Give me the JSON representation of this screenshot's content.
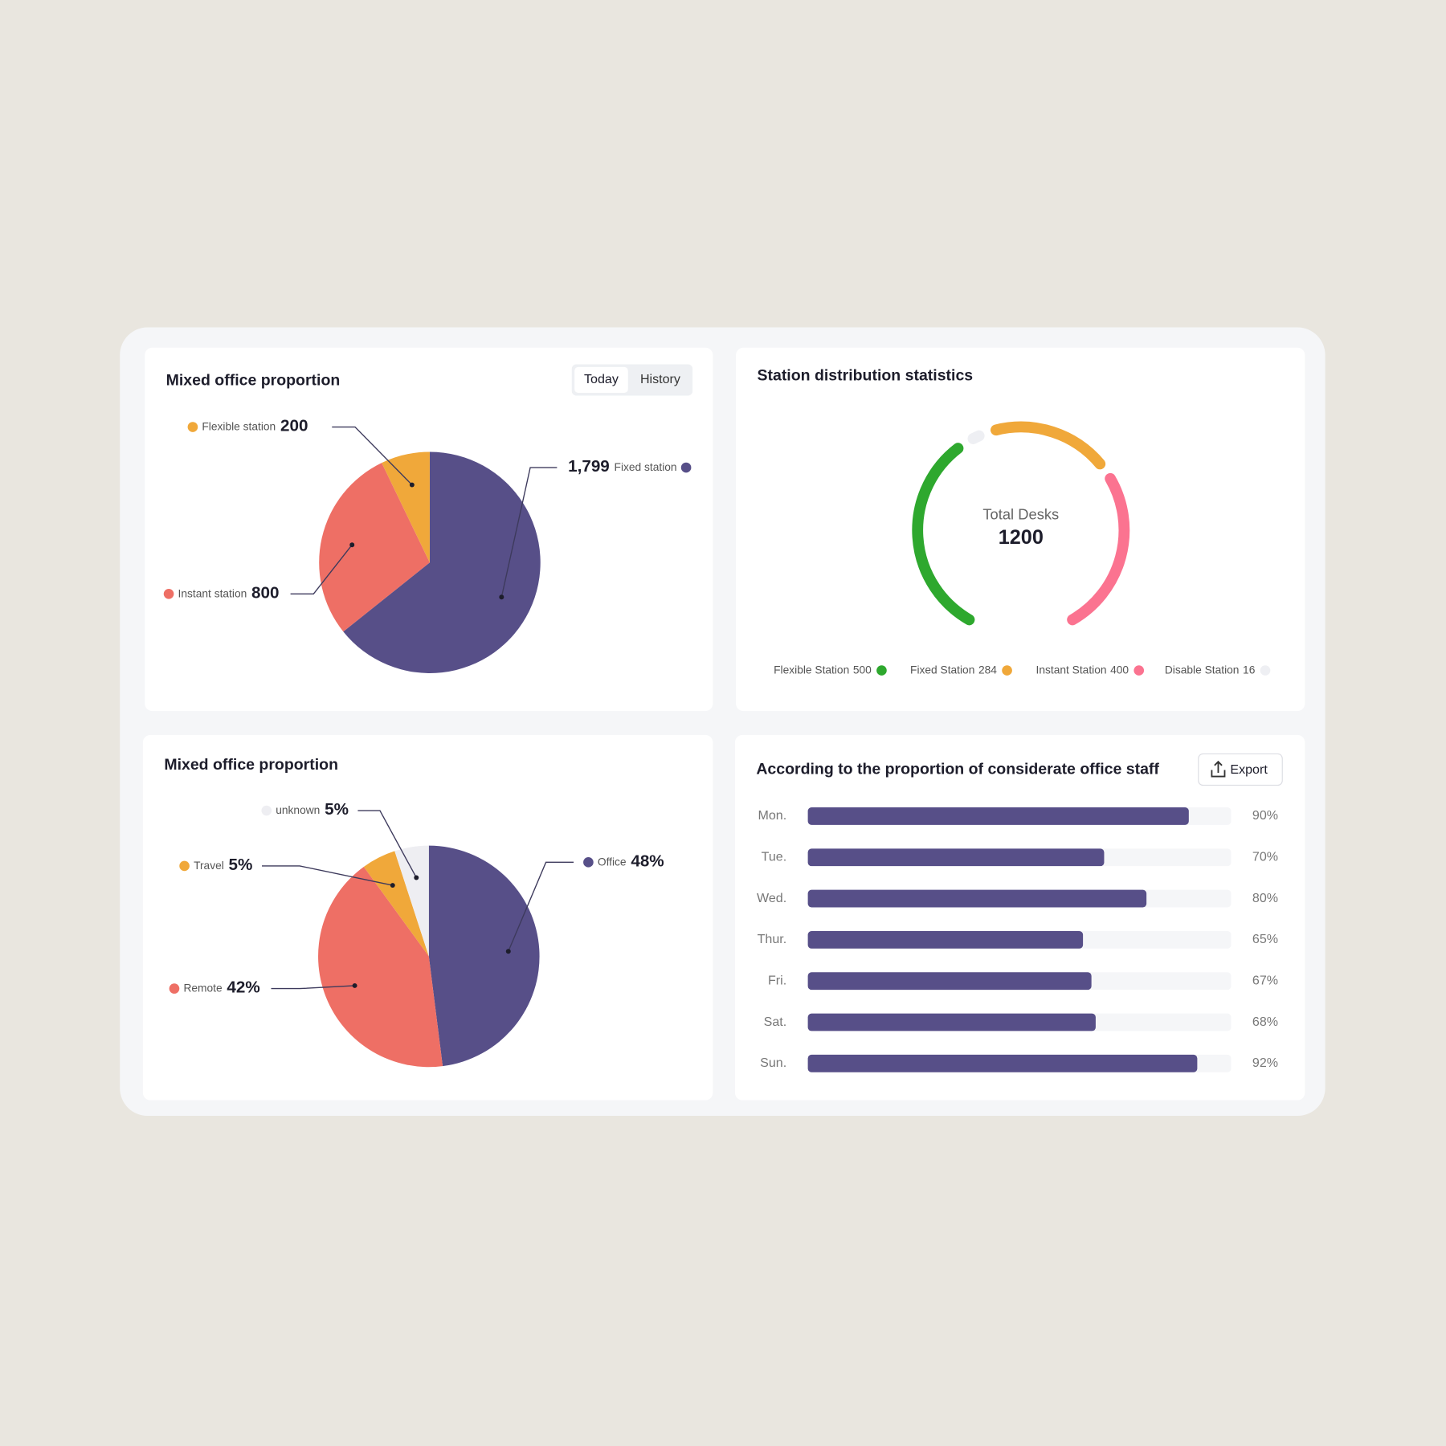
{
  "chart_data": [
    {
      "type": "pie",
      "title": "Mixed office proportion",
      "buttons": [
        "Today",
        "History"
      ],
      "categories": [
        "Fixed station",
        "Instant station",
        "Flexible station"
      ],
      "values": [
        1799,
        800,
        200
      ],
      "value_labels": [
        "1,799",
        "800",
        "200"
      ],
      "colors": [
        "#574f88",
        "#ee6f65",
        "#f0a83a"
      ]
    },
    {
      "type": "donut",
      "title": "Station distribution statistics",
      "center_label": "Total Desks",
      "total": 1200,
      "categories": [
        "Flexible Station",
        "Fixed Station",
        "Instant Station",
        "Disable Station"
      ],
      "values": [
        500,
        284,
        400,
        16
      ],
      "colors": [
        "#2ea82e",
        "#f0a83a",
        "#fb7390",
        "#eeeff3"
      ]
    },
    {
      "type": "pie",
      "title": "Mixed office proportion",
      "categories": [
        "Office",
        "Remote",
        "Travel",
        "unknown"
      ],
      "values": [
        48,
        42,
        5,
        5
      ],
      "value_labels": [
        "48%",
        "42%",
        "5%",
        "5%"
      ],
      "colors": [
        "#574f88",
        "#ee6f65",
        "#f0a83a",
        "#eeeef2"
      ]
    },
    {
      "type": "hbar",
      "title": "According to the proportion of considerate office staff",
      "button": "Export",
      "categories": [
        "Mon.",
        "Tue.",
        "Wed.",
        "Thur.",
        "Fri.",
        "Sat.",
        "Sun."
      ],
      "values": [
        90,
        70,
        80,
        65,
        67,
        68,
        92
      ],
      "value_labels": [
        "90%",
        "70%",
        "80%",
        "65%",
        "67%",
        "68%",
        "92%"
      ],
      "xlim": [
        0,
        100
      ],
      "color": "#574f88"
    }
  ]
}
